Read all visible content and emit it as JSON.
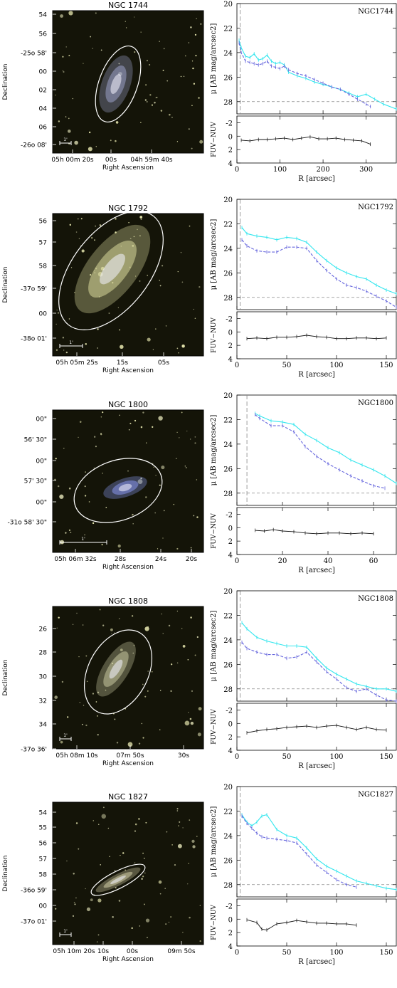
{
  "colors": {
    "fuv_profile": "#33e6ee",
    "nuv_profile": "#6666dd",
    "color_profile": "#111111",
    "sky_dashed": "#888888",
    "ellipse": "#ffffff",
    "image_background": "#141408"
  },
  "chart_data": [
    {
      "type": "image",
      "panel": "galaxy-image",
      "title": "NGC 1744",
      "xlabel": "Right Ascension",
      "ylabel": "Declination",
      "xtick_labels": [
        "05h 00m 20s",
        "00s",
        "04h 59m 40s"
      ],
      "ytick_labels": [
        "54",
        "56",
        "-25o 58'",
        "00",
        "02",
        "04",
        "06",
        "-26o 08'"
      ],
      "scale_bar_label": "1'",
      "tint": "#9aa0c8"
    },
    {
      "type": "line",
      "panel": "surface-brightness",
      "label": "NGC1744",
      "ylabel": "μ [AB mag/arcsec2]",
      "xlim": [
        0,
        370
      ],
      "ylim": [
        20,
        29
      ],
      "ytick_labels": [
        "20",
        "22",
        "24",
        "26",
        "28"
      ],
      "sky_level": 28,
      "series": [
        {
          "x": [
            5,
            10,
            20,
            30,
            40,
            50,
            60,
            70,
            80,
            90,
            100,
            110,
            120,
            140,
            160,
            180,
            200,
            220,
            240,
            260,
            280,
            300,
            320,
            340,
            370
          ],
          "y": [
            23.0,
            23.6,
            24.3,
            24.4,
            24.1,
            24.6,
            24.5,
            24.2,
            24.7,
            24.9,
            24.8,
            25.0,
            25.6,
            25.9,
            26.1,
            26.4,
            26.6,
            26.8,
            27.0,
            27.3,
            27.6,
            27.4,
            27.8,
            28.2,
            28.6
          ]
        },
        {
          "x": [
            5,
            10,
            20,
            30,
            40,
            50,
            60,
            70,
            80,
            90,
            100,
            110,
            120,
            140,
            160,
            180,
            200,
            220,
            240,
            260,
            280,
            300,
            310
          ],
          "y": [
            23.2,
            24.0,
            24.7,
            24.8,
            24.9,
            25.0,
            24.9,
            24.7,
            25.1,
            25.2,
            25.3,
            25.1,
            25.4,
            25.7,
            25.9,
            26.2,
            26.5,
            26.8,
            27.0,
            27.4,
            27.8,
            28.2,
            28.4
          ]
        }
      ]
    },
    {
      "type": "line",
      "panel": "color-profile",
      "ylabel": "FUV−NUV",
      "xlabel": "R [arcsec]",
      "xlim": [
        0,
        370
      ],
      "ylim": [
        -3,
        4
      ],
      "xtick_labels": [
        "0",
        "100",
        "200",
        "300"
      ],
      "ytick_labels": [
        "-2",
        "0",
        "2",
        "4"
      ],
      "series": [
        {
          "x": [
            10,
            30,
            50,
            70,
            90,
            110,
            130,
            150,
            170,
            190,
            210,
            230,
            250,
            270,
            290,
            310
          ],
          "y": [
            0.6,
            0.7,
            0.5,
            0.5,
            0.4,
            0.3,
            0.5,
            0.3,
            0.1,
            0.4,
            0.4,
            0.3,
            0.5,
            0.6,
            0.7,
            1.2
          ]
        }
      ]
    },
    {
      "type": "image",
      "panel": "galaxy-image",
      "title": "NGC 1792",
      "xlabel": "Right Ascension",
      "ylabel": "Declination",
      "xtick_labels": [
        "05h 05m 25s",
        "15s",
        "05s"
      ],
      "ytick_labels": [
        "56",
        "57",
        "58",
        "-37o 59'",
        "00",
        "-38o 01'"
      ],
      "scale_bar_label": "1'",
      "tint": "#d8d89a"
    },
    {
      "type": "line",
      "panel": "surface-brightness",
      "label": "NGC1792",
      "ylabel": "μ [AB mag/arcsec2]",
      "xlim": [
        0,
        160
      ],
      "ylim": [
        20,
        29
      ],
      "ytick_labels": [
        "20",
        "22",
        "24",
        "26",
        "28"
      ],
      "sky_level": 28,
      "series": [
        {
          "x": [
            5,
            10,
            20,
            30,
            40,
            50,
            60,
            70,
            80,
            90,
            100,
            110,
            120,
            130,
            140,
            150,
            160
          ],
          "y": [
            22.3,
            22.8,
            23.0,
            23.1,
            23.3,
            23.1,
            23.2,
            23.5,
            24.3,
            25.0,
            25.6,
            26.0,
            26.3,
            26.5,
            27.0,
            27.4,
            27.7
          ]
        },
        {
          "x": [
            5,
            10,
            20,
            30,
            40,
            50,
            60,
            70,
            80,
            90,
            100,
            110,
            120,
            130,
            140,
            150,
            160
          ],
          "y": [
            23.3,
            23.8,
            24.2,
            24.3,
            24.3,
            23.9,
            23.9,
            24.0,
            25.0,
            25.8,
            26.5,
            27.0,
            27.2,
            27.5,
            27.9,
            28.3,
            28.8
          ]
        }
      ]
    },
    {
      "type": "line",
      "panel": "color-profile",
      "ylabel": "FUV−NUV",
      "xlabel": "R [arcsec]",
      "xlim": [
        0,
        160
      ],
      "ylim": [
        -3,
        4
      ],
      "xtick_labels": [
        "0",
        "50",
        "100",
        "150"
      ],
      "ytick_labels": [
        "-2",
        "0",
        "2",
        "4"
      ],
      "series": [
        {
          "x": [
            10,
            20,
            30,
            40,
            50,
            60,
            70,
            80,
            90,
            100,
            110,
            120,
            130,
            140,
            150
          ],
          "y": [
            1.0,
            0.9,
            1.0,
            0.8,
            0.8,
            0.7,
            0.5,
            0.7,
            0.8,
            1.0,
            1.0,
            0.9,
            0.9,
            1.0,
            0.9
          ]
        }
      ]
    },
    {
      "type": "image",
      "panel": "galaxy-image",
      "title": "NGC 1800",
      "xlabel": "Right Ascension",
      "ylabel": "",
      "xtick_labels": [
        "05h 06m 32s",
        "28s",
        "24s",
        "20s"
      ],
      "ytick_labels": [
        "00\"",
        "56' 30\"",
        "00\"",
        "57' 30\"",
        "00\"",
        "-31o 58' 30\""
      ],
      "scale_bar_label": "1'",
      "tint": "#8898ee"
    },
    {
      "type": "line",
      "panel": "surface-brightness",
      "label": "NGC1800",
      "ylabel": "μ [AB mag/arcsec2]",
      "xlim": [
        0,
        70
      ],
      "ylim": [
        20,
        29
      ],
      "ytick_labels": [
        "20",
        "22",
        "24",
        "26",
        "28"
      ],
      "sky_level": 28,
      "series": [
        {
          "x": [
            8,
            10,
            15,
            20,
            25,
            30,
            35,
            40,
            45,
            50,
            55,
            60,
            65,
            70
          ],
          "y": [
            21.5,
            21.7,
            22.1,
            22.2,
            22.4,
            23.2,
            23.7,
            24.3,
            24.7,
            25.3,
            25.7,
            26.1,
            26.6,
            27.2
          ]
        },
        {
          "x": [
            8,
            10,
            15,
            20,
            25,
            30,
            35,
            40,
            45,
            50,
            55,
            60,
            65
          ],
          "y": [
            21.6,
            21.9,
            22.5,
            22.5,
            23.0,
            24.2,
            25.0,
            25.6,
            26.1,
            26.6,
            27.0,
            27.4,
            27.6
          ]
        }
      ]
    },
    {
      "type": "line",
      "panel": "color-profile",
      "ylabel": "FUV−NUV",
      "xlabel": "R [arcsec]",
      "xlim": [
        0,
        70
      ],
      "ylim": [
        -3,
        4
      ],
      "xtick_labels": [
        "0",
        "20",
        "40",
        "60"
      ],
      "ytick_labels": [
        "-2",
        "0",
        "2",
        "4"
      ],
      "series": [
        {
          "x": [
            8,
            12,
            16,
            20,
            25,
            30,
            35,
            40,
            45,
            50,
            55,
            60
          ],
          "y": [
            0.4,
            0.5,
            0.3,
            0.5,
            0.6,
            0.8,
            0.9,
            0.8,
            0.8,
            0.9,
            0.8,
            0.9
          ]
        }
      ]
    },
    {
      "type": "image",
      "panel": "galaxy-image",
      "title": "NGC 1808",
      "xlabel": "Right Ascension",
      "ylabel": "Declination",
      "xtick_labels": [
        "05h 08m 10s",
        "07m 50s",
        "30s"
      ],
      "ytick_labels": [
        "26",
        "28",
        "30",
        "32",
        "34",
        "-37o 36'"
      ],
      "scale_bar_label": "1'",
      "tint": "#c8c8a0"
    },
    {
      "type": "line",
      "panel": "surface-brightness",
      "label": "NGC1808",
      "ylabel": "μ [AB mag/arcsec2]",
      "xlim": [
        0,
        160
      ],
      "ylim": [
        20,
        29
      ],
      "ytick_labels": [
        "20",
        "22",
        "24",
        "26",
        "28"
      ],
      "sky_level": 28,
      "series": [
        {
          "x": [
            5,
            10,
            20,
            30,
            40,
            50,
            60,
            70,
            80,
            90,
            100,
            110,
            120,
            130,
            140,
            150,
            160
          ],
          "y": [
            22.6,
            23.1,
            23.8,
            24.1,
            24.3,
            24.5,
            24.5,
            24.6,
            25.5,
            26.3,
            26.8,
            27.2,
            27.6,
            27.8,
            28.0,
            28.0,
            28.2
          ]
        },
        {
          "x": [
            5,
            10,
            20,
            30,
            40,
            50,
            60,
            70,
            80,
            90,
            100,
            110,
            120,
            130,
            140,
            150,
            160
          ],
          "y": [
            24.2,
            24.7,
            25.0,
            25.2,
            25.2,
            25.5,
            25.4,
            25.0,
            25.8,
            26.6,
            27.2,
            27.9,
            28.2,
            28.0,
            28.5,
            28.9,
            29.0
          ]
        }
      ]
    },
    {
      "type": "line",
      "panel": "color-profile",
      "ylabel": "FUV−NUV",
      "xlabel": "R [arcsec]",
      "xlim": [
        0,
        160
      ],
      "ylim": [
        -3,
        4
      ],
      "xtick_labels": [
        "0",
        "50",
        "100",
        "150"
      ],
      "ytick_labels": [
        "-2",
        "0",
        "2",
        "4"
      ],
      "series": [
        {
          "x": [
            10,
            20,
            30,
            40,
            50,
            60,
            70,
            80,
            90,
            100,
            110,
            120,
            130,
            140,
            150
          ],
          "y": [
            1.4,
            1.1,
            0.9,
            0.8,
            0.6,
            0.5,
            0.4,
            0.6,
            0.4,
            0.3,
            0.6,
            0.9,
            0.6,
            0.9,
            1.0
          ]
        }
      ]
    },
    {
      "type": "image",
      "panel": "galaxy-image",
      "title": "NGC 1827",
      "xlabel": "Right Ascension",
      "ylabel": "Declination",
      "xtick_labels": [
        "05h 10m 20s",
        "10s",
        "00s",
        "09m 50s"
      ],
      "ytick_labels": [
        "54",
        "55",
        "56",
        "57",
        "58",
        "-36o 59'",
        "00",
        "-37o 01'"
      ],
      "scale_bar_label": "1'",
      "tint": "#d6d2a8"
    },
    {
      "type": "line",
      "panel": "surface-brightness",
      "label": "NGC1827",
      "ylabel": "μ [AB mag/arcsec2]",
      "xlim": [
        0,
        160
      ],
      "ylim": [
        20,
        29
      ],
      "ytick_labels": [
        "20",
        "22",
        "24",
        "26",
        "28"
      ],
      "sky_level": 28,
      "series": [
        {
          "x": [
            5,
            10,
            15,
            20,
            25,
            30,
            40,
            50,
            60,
            70,
            80,
            90,
            100,
            110,
            120,
            130,
            140,
            150,
            160
          ],
          "y": [
            22.3,
            22.9,
            23.2,
            22.9,
            22.4,
            22.3,
            23.5,
            24.0,
            24.2,
            25.0,
            25.9,
            26.5,
            26.9,
            27.3,
            27.7,
            27.9,
            28.1,
            28.3,
            28.4
          ]
        },
        {
          "x": [
            5,
            10,
            15,
            20,
            25,
            30,
            40,
            50,
            60,
            70,
            80,
            90,
            100,
            110,
            120
          ],
          "y": [
            22.4,
            23.0,
            23.4,
            23.8,
            24.1,
            24.2,
            24.3,
            24.4,
            24.6,
            25.5,
            26.4,
            27.0,
            27.6,
            28.0,
            28.2
          ]
        }
      ]
    },
    {
      "type": "line",
      "panel": "color-profile",
      "ylabel": "FUV−NUV",
      "xlabel": "R [arcsec]",
      "xlim": [
        0,
        160
      ],
      "ylim": [
        -3,
        4
      ],
      "xtick_labels": [
        "0",
        "50",
        "100",
        "150"
      ],
      "ytick_labels": [
        "-2",
        "0",
        "2",
        "4"
      ],
      "series": [
        {
          "x": [
            10,
            20,
            25,
            30,
            40,
            50,
            60,
            70,
            80,
            90,
            100,
            110,
            120
          ],
          "y": [
            0.1,
            0.5,
            1.5,
            1.6,
            0.7,
            0.5,
            0.2,
            0.4,
            0.6,
            0.6,
            0.7,
            0.7,
            0.9
          ]
        }
      ]
    }
  ]
}
